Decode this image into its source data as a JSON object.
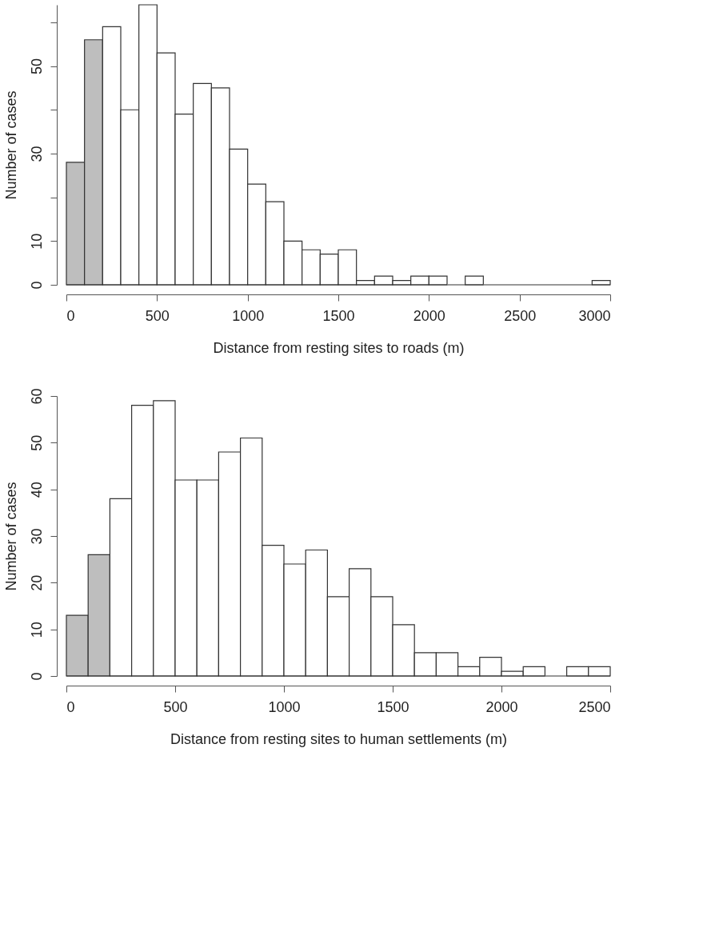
{
  "chart_data": [
    {
      "type": "histogram",
      "xlabel": "Distance from resting sites to roads (m)",
      "ylabel": "Number of cases",
      "bins": [
        0,
        100,
        200,
        300,
        400,
        500,
        600,
        700,
        800,
        900,
        1000,
        1100,
        1200,
        1300,
        1400,
        1500,
        1600,
        1700,
        1800,
        1900,
        2000,
        2100,
        2200,
        2300,
        2400,
        2500,
        2600,
        2700,
        2800,
        2900,
        3000
      ],
      "values": [
        28,
        56,
        59,
        40,
        64,
        53,
        39,
        46,
        45,
        31,
        23,
        19,
        10,
        8,
        7,
        8,
        1,
        2,
        1,
        2,
        2,
        0,
        2,
        0,
        0,
        0,
        0,
        0,
        0,
        1
      ],
      "colors": [
        "#bebebe",
        "#bebebe",
        "#ffffff",
        "#ffffff",
        "#ffffff",
        "#ffffff",
        "#ffffff",
        "#ffffff",
        "#ffffff",
        "#ffffff",
        "#ffffff",
        "#ffffff",
        "#ffffff",
        "#ffffff",
        "#ffffff",
        "#ffffff",
        "#ffffff",
        "#ffffff",
        "#ffffff",
        "#ffffff",
        "#ffffff",
        "#ffffff",
        "#ffffff",
        "#ffffff",
        "#ffffff",
        "#ffffff",
        "#ffffff",
        "#ffffff",
        "#ffffff",
        "#ffffff"
      ],
      "xlim": [
        0,
        3000
      ],
      "xticks": [
        0,
        500,
        1000,
        1500,
        2000,
        2500,
        3000
      ],
      "ylim": [
        0,
        64
      ],
      "yticks": [
        0,
        10,
        {
          "value": 20,
          "label": null
        },
        30,
        {
          "value": 40,
          "label": null
        },
        50,
        {
          "value": 60,
          "label": null
        }
      ],
      "grid": false
    },
    {
      "type": "histogram",
      "xlabel": "Distance from resting sites to human settlements (m)",
      "ylabel": "Number of cases",
      "bins": [
        0,
        100,
        200,
        300,
        400,
        500,
        600,
        700,
        800,
        900,
        1000,
        1100,
        1200,
        1300,
        1400,
        1500,
        1600,
        1700,
        1800,
        1900,
        2000,
        2100,
        2200,
        2300,
        2400,
        2500
      ],
      "values": [
        13,
        26,
        38,
        58,
        59,
        42,
        42,
        48,
        51,
        28,
        24,
        27,
        17,
        23,
        17,
        11,
        5,
        5,
        2,
        4,
        1,
        2,
        0,
        2,
        2
      ],
      "colors": [
        "#bebebe",
        "#bebebe",
        "#ffffff",
        "#ffffff",
        "#ffffff",
        "#ffffff",
        "#ffffff",
        "#ffffff",
        "#ffffff",
        "#ffffff",
        "#ffffff",
        "#ffffff",
        "#ffffff",
        "#ffffff",
        "#ffffff",
        "#ffffff",
        "#ffffff",
        "#ffffff",
        "#ffffff",
        "#ffffff",
        "#ffffff",
        "#ffffff",
        "#ffffff",
        "#ffffff",
        "#ffffff"
      ],
      "xlim": [
        0,
        2500
      ],
      "xticks": [
        0,
        500,
        1000,
        1500,
        2000,
        2500
      ],
      "ylim": [
        0,
        60
      ],
      "yticks": [
        0,
        10,
        20,
        30,
        40,
        50,
        60
      ],
      "grid": false
    }
  ]
}
